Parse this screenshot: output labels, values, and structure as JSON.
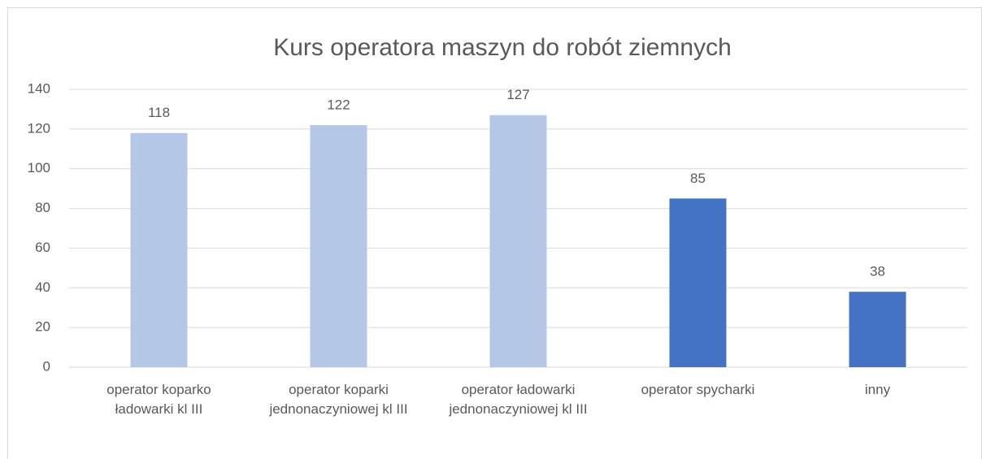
{
  "chart_data": {
    "type": "bar",
    "title": "Kurs operatora maszyn do robót ziemnych",
    "categories": [
      "operator koparko ładowarki kl III",
      "operator koparki jednonaczyniowej kl III",
      "operator ładowarki jednonaczyniowej kl III",
      "operator spycharki",
      "inny"
    ],
    "values": [
      118,
      122,
      127,
      85,
      38
    ],
    "colors": [
      "#b4c7e7",
      "#b4c7e7",
      "#b4c7e7",
      "#4472c4",
      "#4472c4"
    ],
    "ylim": [
      0,
      140
    ],
    "yticks": [
      0,
      20,
      40,
      60,
      80,
      100,
      120,
      140
    ],
    "grid": true
  }
}
